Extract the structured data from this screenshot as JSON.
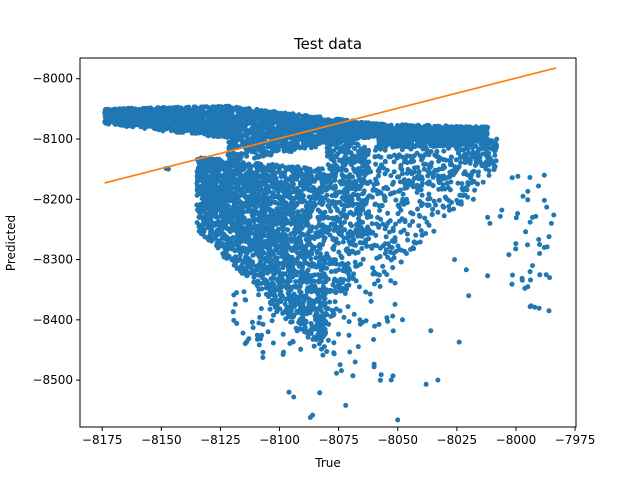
{
  "chart_data": {
    "type": "scatter",
    "title": "Test data",
    "xlabel": "True",
    "ylabel": "Predicted",
    "xlim": [
      -8184.4,
      -7974.6
    ],
    "ylim": [
      -8577.8,
      -7965.6
    ],
    "xticks": [
      -8175,
      -8150,
      -8125,
      -8100,
      -8075,
      -8050,
      -8025,
      -8000,
      -7975
    ],
    "xtick_labels": [
      "−8175",
      "−8150",
      "−8125",
      "−8100",
      "−8075",
      "−8050",
      "−8025",
      "−8000",
      "−7975"
    ],
    "yticks": [
      -8500,
      -8400,
      -8300,
      -8200,
      -8100,
      -8000
    ],
    "ytick_labels": [
      "−8500",
      "−8400",
      "−8300",
      "−8200",
      "−8100",
      "−8000"
    ],
    "grid": false,
    "colors": {
      "points": "#1f77b4",
      "fit_line": "#ff7f0e"
    },
    "series": [
      {
        "type": "scatter",
        "regions": [
          {
            "x": [
              -8174,
              -8120
            ],
            "y_top": [
              -8050,
              -8045
            ],
            "y_bottom": [
              -8075,
              -8100
            ],
            "n": 1100
          },
          {
            "x": [
              -8122,
              -8058
            ],
            "y_top": [
              -8045,
              -8075
            ],
            "y_bottom": [
              -8140,
              -8095
            ],
            "n": 1400
          },
          {
            "x": [
              -8058,
              -8012
            ],
            "y_top": [
              -8075,
              -8080
            ],
            "y_bottom": [
              -8115,
              -8110
            ],
            "n": 700
          },
          {
            "x": [
              -8135,
              -8080
            ],
            "y_top": [
              -8130,
              -8150
            ],
            "y_bottom": [
              -8250,
              -8470
            ],
            "n": 2300
          },
          {
            "x": [
              -8080,
              -8062
            ],
            "y_top": [
              -8100,
              -8110
            ],
            "y_bottom": [
              -8420,
              -8280
            ],
            "n": 500
          },
          {
            "x": [
              -8062,
              -8008
            ],
            "y_top": [
              -8110,
              -8100
            ],
            "y_bottom": [
              -8360,
              -8150
            ],
            "n": 500
          },
          {
            "x": [
              -8120,
              -8050
            ],
            "y_top": [
              -8350,
              -8320
            ],
            "y_bottom": [
              -8450,
              -8520
            ],
            "n": 110
          },
          {
            "x": [
              -8007,
              -7985
            ],
            "y_top": [
              -8150,
              -8160
            ],
            "y_bottom": [
              -8380,
              -8390
            ],
            "n": 28
          }
        ],
        "points": [
          [
            -8147,
            -8150
          ],
          [
            -8148,
            -8149
          ],
          [
            -8072,
            -8542
          ],
          [
            -8087,
            -8562
          ],
          [
            -8086,
            -8558
          ],
          [
            -8050,
            -8566
          ],
          [
            -8096,
            -8520
          ],
          [
            -8094,
            -8528
          ],
          [
            -8083,
            -8521
          ],
          [
            -8038,
            -8507
          ],
          [
            -8033,
            -8500
          ],
          [
            -8057,
            -8491
          ],
          [
            -8052,
            -8493
          ],
          [
            -8068,
            -8470
          ],
          [
            -8060,
            -8478
          ],
          [
            -8024,
            -8437
          ],
          [
            -8036,
            -8418
          ],
          [
            -8048,
            -8400
          ],
          [
            -8020,
            -8360
          ],
          [
            -8018,
            -8200
          ],
          [
            -8012,
            -8230
          ],
          [
            -8011,
            -8240
          ],
          [
            -7997,
            -8195
          ],
          [
            -7995,
            -8187
          ],
          [
            -7994,
            -8238
          ],
          [
            -7993,
            -8230
          ],
          [
            -7990,
            -8275
          ],
          [
            -7990,
            -8290
          ],
          [
            -7993,
            -8310
          ],
          [
            -7994,
            -8320
          ],
          [
            -7995,
            -8345
          ],
          [
            -7994,
            -8378
          ],
          [
            -7988,
            -8160
          ],
          [
            -7987,
            -8213
          ],
          [
            -7985,
            -8240
          ],
          [
            -7984,
            -8226
          ],
          [
            -7986,
            -8262
          ],
          [
            -7988,
            -8280
          ],
          [
            -7986,
            -8385
          ],
          [
            -8012,
            -8327
          ],
          [
            -8006,
            -8218
          ],
          [
            -8003,
            -8292
          ],
          [
            -8026,
            -8300
          ],
          [
            -8021,
            -8317
          ]
        ]
      },
      {
        "type": "line",
        "x": [
          -8174,
          -7983
        ],
        "y": [
          -8173,
          -7982
        ]
      }
    ]
  }
}
